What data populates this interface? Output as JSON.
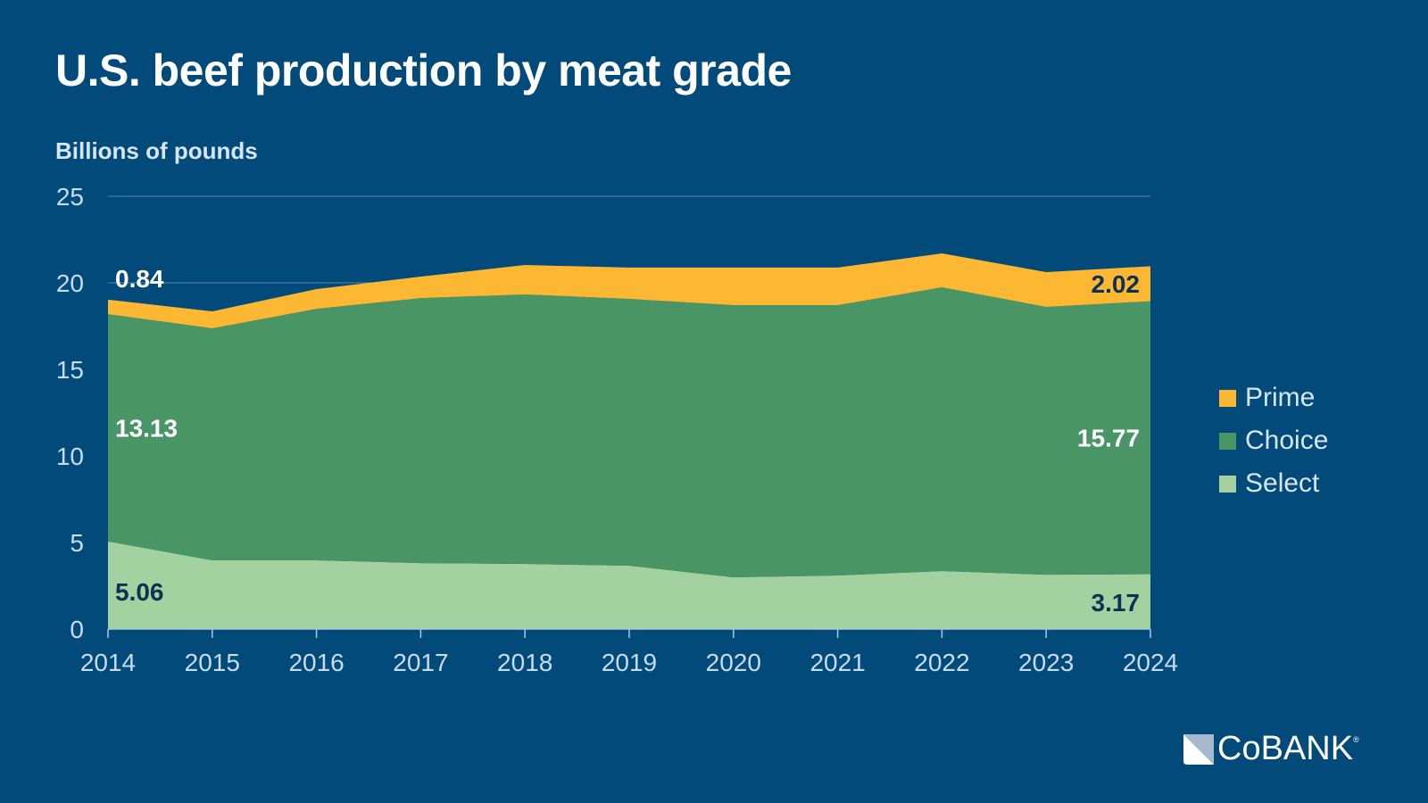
{
  "header": {
    "title": "U.S. beef production by meat grade",
    "unit_label": "Billions of pounds"
  },
  "logo": {
    "icon": "cobank-logo-icon",
    "text": "CoBANK",
    "registered_mark": "®"
  },
  "colors": {
    "background": "#024a7a",
    "prime": "#fdb833",
    "choice": "#4a9566",
    "select": "#a3d1a0",
    "axis_text": "#c7dcee",
    "gridline": "#5b86a8",
    "dark_label": "#0d3152"
  },
  "legend": [
    {
      "name": "Prime",
      "color": "#fdb833"
    },
    {
      "name": "Choice",
      "color": "#4a9566"
    },
    {
      "name": "Select",
      "color": "#a3d1a0"
    }
  ],
  "chart_data": {
    "type": "area",
    "stacked": true,
    "title": "U.S. beef production by meat grade",
    "ylabel": "Billions of pounds",
    "xlabel": "",
    "ylim": [
      0,
      25
    ],
    "yticks": [
      0,
      5,
      10,
      15,
      20,
      25
    ],
    "grid": true,
    "legend_position": "right",
    "x": [
      "2014",
      "2015",
      "2016",
      "2017",
      "2018",
      "2019",
      "2020",
      "2021",
      "2022",
      "2023",
      "2024"
    ],
    "series": [
      {
        "name": "Select",
        "color": "#a3d1a0",
        "values": [
          5.06,
          3.97,
          3.97,
          3.81,
          3.76,
          3.66,
          2.99,
          3.09,
          3.35,
          3.14,
          3.17
        ]
      },
      {
        "name": "Choice",
        "color": "#4a9566",
        "values": [
          13.13,
          13.4,
          14.53,
          15.31,
          15.57,
          15.41,
          15.72,
          15.62,
          16.39,
          15.47,
          15.77
        ]
      },
      {
        "name": "Prime",
        "color": "#fdb833",
        "values": [
          0.84,
          0.98,
          1.14,
          1.24,
          1.7,
          1.81,
          2.17,
          2.17,
          1.96,
          2.01,
          2.02
        ]
      }
    ],
    "annotations": [
      {
        "series": "Prime",
        "x": "2014",
        "text": "0.84"
      },
      {
        "series": "Choice",
        "x": "2014",
        "text": "13.13"
      },
      {
        "series": "Select",
        "x": "2014",
        "text": "5.06"
      },
      {
        "series": "Prime",
        "x": "2024",
        "text": "2.02"
      },
      {
        "series": "Choice",
        "x": "2024",
        "text": "15.77"
      },
      {
        "series": "Select",
        "x": "2024",
        "text": "3.17"
      }
    ]
  }
}
